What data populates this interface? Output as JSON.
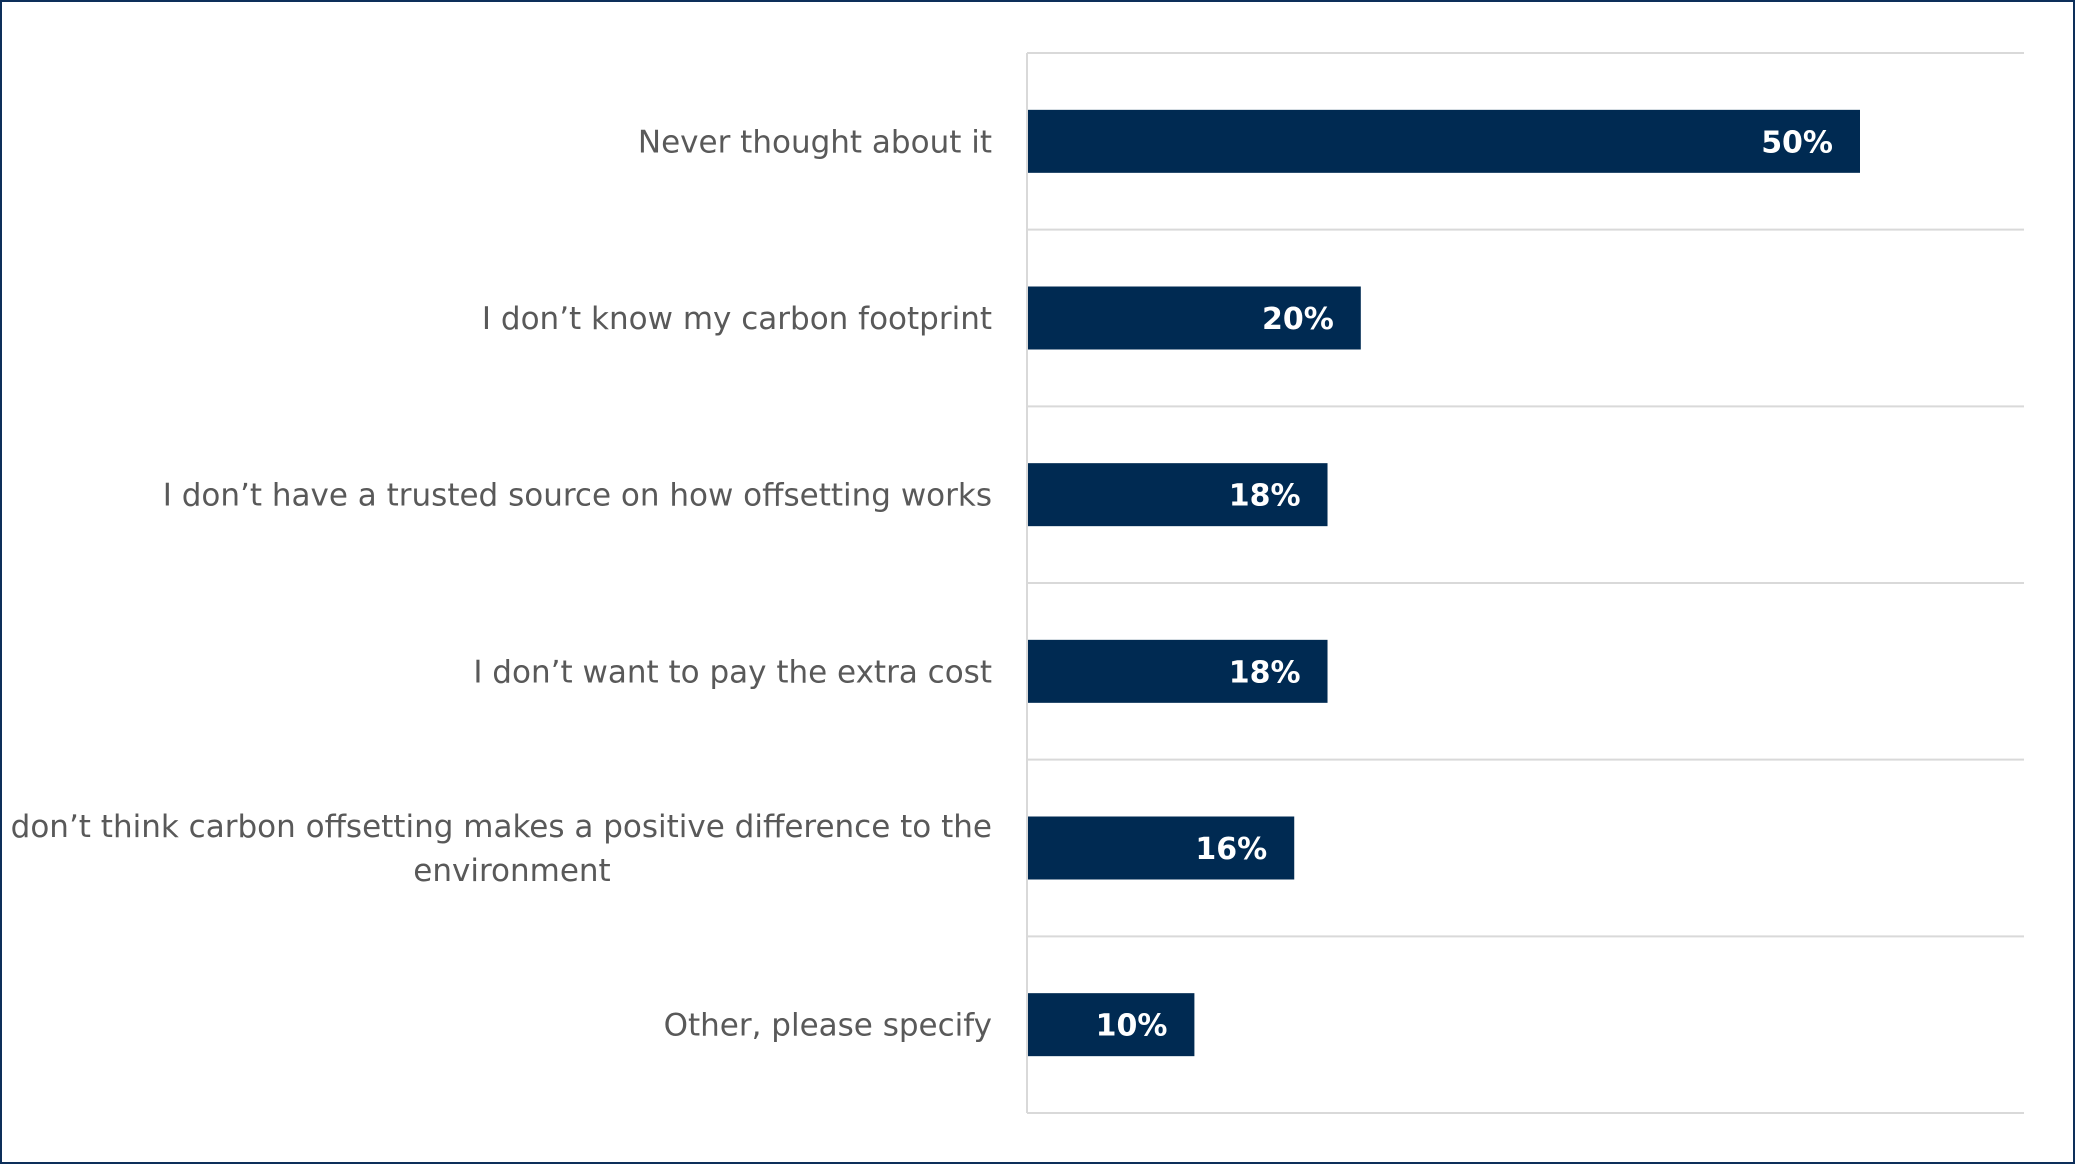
{
  "chart_data": {
    "type": "bar",
    "orientation": "horizontal",
    "title": "",
    "xlabel": "",
    "ylabel": "",
    "categories": [
      "Never thought about it",
      "I don’t know my carbon footprint",
      "I don’t have a trusted source on how offsetting works",
      "I don’t want to pay the extra cost",
      "I don’t think carbon offsetting makes a positive difference to the environment",
      "Other, please specify"
    ],
    "category_lines": [
      [
        "Never thought about it"
      ],
      [
        "I don’t know my carbon footprint"
      ],
      [
        "I don’t have a trusted source on how offsetting works"
      ],
      [
        "I don’t want to pay the extra cost"
      ],
      [
        "I don’t think carbon offsetting makes a positive difference to the",
        "environment"
      ],
      [
        "Other, please specify"
      ]
    ],
    "values": [
      50,
      20,
      18,
      18,
      16,
      10
    ],
    "value_labels": [
      "50%",
      "20%",
      "18%",
      "18%",
      "16%",
      "10%"
    ],
    "xlim": [
      0,
      60
    ],
    "grid": true,
    "legend": "none",
    "colors": {
      "bar": "#002a52",
      "label_text": "#595959",
      "value_text": "#ffffff",
      "grid": "#d9d9d9",
      "frame": "#0d2f5a"
    }
  }
}
